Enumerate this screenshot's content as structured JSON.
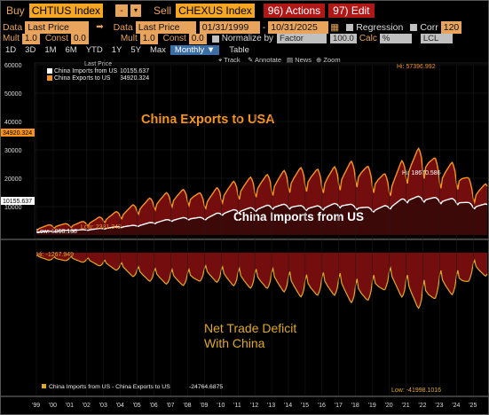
{
  "toolbar": {
    "buy_label": "Buy",
    "buy_ticker": "CHTIUS Index",
    "dash": "-",
    "sell_label": "Sell",
    "sell_ticker": "CHEXUS Index",
    "actions": "96) Actions",
    "edit": "97) Edit"
  },
  "row2": {
    "data1_label": "Data",
    "data1_value": "Last Price",
    "data2_label": "Data",
    "data2_value": "Last Price",
    "date_from": "01/31/1999",
    "date_to": "10/31/2025",
    "regression_label": "Regression",
    "corr_label": "Corr",
    "corr_value": "120"
  },
  "row3": {
    "mult1_label": "Mult",
    "mult1_value": "1.0",
    "const1_label": "Const",
    "const1_value": "0.0",
    "mult2_label": "Mult",
    "mult2_value": "1.0",
    "const2_label": "Const",
    "const2_value": "0.0",
    "normalize_label": "Normalize by",
    "normalize_value": "Factor",
    "factor_value": "100.0",
    "calc_label": "Calc",
    "calc_value": "%",
    "currency_value": "LCL"
  },
  "row4": {
    "periods": [
      "1D",
      "3D",
      "1M",
      "6M",
      "YTD",
      "1Y",
      "5Y",
      "Max"
    ],
    "selected": "Monthly",
    "table": "Table"
  },
  "chart_tools": {
    "track": "Track",
    "annotate": "Annotate",
    "news": "News",
    "zoom": "Zoom"
  },
  "colors": {
    "exports": "#f7941d",
    "imports": "#ffffff",
    "fill": "#7a0f0f",
    "deficit": "#e0a825",
    "accent": "#e8a35c"
  },
  "chart_data": [
    {
      "type": "area",
      "legend_header": "Last Price",
      "series": [
        {
          "name": "China Exports to US",
          "last": "34920.324",
          "high_label": "Hi: 57396.992",
          "low_label": "Low: 2381.342"
        },
        {
          "name": "China Imports from US",
          "last": "10155.637",
          "high_label": "Hi: 18670.586",
          "low_label": "Low: 1068.138"
        }
      ],
      "legend_entries": [
        {
          "name": "China Imports from US",
          "value": "10155.637"
        },
        {
          "name": "China Exports to US",
          "value": "34920.324"
        }
      ],
      "annotations": [
        "China Exports to USA",
        "China Imports from US"
      ],
      "ylim": [
        0,
        60000
      ],
      "yticks": [
        "60000",
        "50000",
        "40000",
        "30000",
        "20000",
        "10000"
      ],
      "last_labels": {
        "exports": "34920.324",
        "imports": "10155.637"
      },
      "x_years": [
        1999,
        2000,
        2001,
        2002,
        2003,
        2004,
        2005,
        2006,
        2007,
        2008,
        2009,
        2010,
        2011,
        2012,
        2013,
        2014,
        2015,
        2016,
        2017,
        2018,
        2019,
        2020,
        2021,
        2022,
        2023,
        2024,
        2025
      ],
      "exports_yearly": [
        2400,
        3300,
        3500,
        4300,
        5800,
        7500,
        9700,
        11700,
        13200,
        14000,
        12300,
        15000,
        16700,
        17800,
        18500,
        19900,
        20600,
        19700,
        21000,
        22800,
        20100,
        18000,
        24000,
        27000,
        22000,
        22000,
        15500
      ],
      "imports_yearly": [
        1070,
        1300,
        1600,
        1800,
        2300,
        2900,
        3300,
        4400,
        5300,
        5900,
        5800,
        7700,
        8600,
        9200,
        10100,
        10200,
        9600,
        9700,
        10700,
        10000,
        8900,
        10000,
        12600,
        12900,
        12300,
        12000,
        10300
      ]
    },
    {
      "type": "area",
      "series": [
        {
          "name": "China Imports from US - China Exports to US",
          "last": "-24764.6875"
        }
      ],
      "annotations": [
        "Net Trade Deficit",
        "With China"
      ],
      "high_label": "Hi: -1267.949",
      "low_label": "Low: -41998.1016",
      "x_labels": [
        "'99",
        "'00",
        "'01",
        "'02",
        "'03",
        "'04",
        "'05",
        "'06",
        "'07",
        "'08",
        "'09",
        "'10",
        "'11",
        "'12",
        "'13",
        "'14",
        "'15",
        "'16",
        "'17",
        "'18",
        "'19",
        "'20",
        "'21",
        "'22",
        "'23",
        "'24",
        "'25"
      ]
    }
  ]
}
